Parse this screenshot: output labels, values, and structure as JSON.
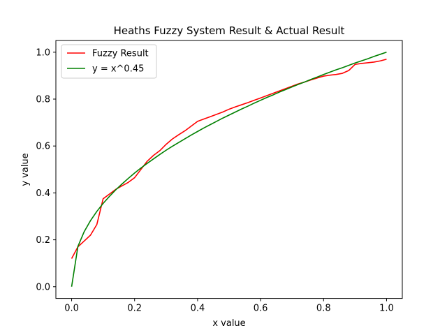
{
  "chart_data": {
    "type": "line",
    "title": "Heaths Fuzzy System Result & Actual Result",
    "xlabel": "x value",
    "ylabel": "y value",
    "xlim": [
      -0.05,
      1.05
    ],
    "ylim": [
      -0.05,
      1.05
    ],
    "xticks": [
      0.0,
      0.2,
      0.4,
      0.6,
      0.8,
      1.0
    ],
    "yticks": [
      0.0,
      0.2,
      0.4,
      0.6,
      0.8,
      1.0
    ],
    "xtick_labels": [
      "0.0",
      "0.2",
      "0.4",
      "0.6",
      "0.8",
      "1.0"
    ],
    "ytick_labels": [
      "0.0",
      "0.2",
      "0.4",
      "0.6",
      "0.8",
      "1.0"
    ],
    "grid": false,
    "legend": "top-left",
    "series": [
      {
        "name": "Fuzzy Result",
        "color": "#ff0000",
        "x": [
          0.0,
          0.02,
          0.04,
          0.06,
          0.08,
          0.1,
          0.12,
          0.14,
          0.16,
          0.18,
          0.2,
          0.22,
          0.24,
          0.26,
          0.28,
          0.3,
          0.32,
          0.34,
          0.36,
          0.38,
          0.4,
          0.42,
          0.44,
          0.46,
          0.48,
          0.5,
          0.52,
          0.54,
          0.56,
          0.58,
          0.6,
          0.62,
          0.64,
          0.66,
          0.68,
          0.7,
          0.72,
          0.74,
          0.76,
          0.78,
          0.8,
          0.82,
          0.84,
          0.86,
          0.88,
          0.9,
          0.92,
          0.94,
          0.96,
          0.98,
          1.0
        ],
        "y": [
          0.12,
          0.17,
          0.195,
          0.22,
          0.265,
          0.375,
          0.395,
          0.415,
          0.43,
          0.445,
          0.465,
          0.5,
          0.535,
          0.56,
          0.58,
          0.607,
          0.63,
          0.648,
          0.665,
          0.685,
          0.705,
          0.715,
          0.725,
          0.735,
          0.745,
          0.757,
          0.767,
          0.776,
          0.785,
          0.795,
          0.805,
          0.815,
          0.825,
          0.835,
          0.845,
          0.855,
          0.865,
          0.873,
          0.882,
          0.89,
          0.898,
          0.902,
          0.905,
          0.91,
          0.922,
          0.948,
          0.952,
          0.955,
          0.958,
          0.963,
          0.97
        ]
      },
      {
        "name": "y = x^0.45",
        "color": "#008000",
        "x": [
          0.0,
          0.02,
          0.04,
          0.06,
          0.08,
          0.1,
          0.12,
          0.14,
          0.16,
          0.18,
          0.2,
          0.22,
          0.24,
          0.26,
          0.28,
          0.3,
          0.32,
          0.34,
          0.36,
          0.38,
          0.4,
          0.42,
          0.44,
          0.46,
          0.48,
          0.5,
          0.52,
          0.54,
          0.56,
          0.58,
          0.6,
          0.62,
          0.64,
          0.66,
          0.68,
          0.7,
          0.72,
          0.74,
          0.76,
          0.78,
          0.8,
          0.82,
          0.84,
          0.86,
          0.88,
          0.9,
          0.92,
          0.94,
          0.96,
          0.98,
          1.0
        ],
        "y": [
          0.0,
          0.172,
          0.235,
          0.282,
          0.321,
          0.355,
          0.385,
          0.413,
          0.438,
          0.462,
          0.485,
          0.506,
          0.526,
          0.545,
          0.564,
          0.582,
          0.599,
          0.615,
          0.631,
          0.647,
          0.662,
          0.677,
          0.691,
          0.705,
          0.719,
          0.732,
          0.745,
          0.758,
          0.77,
          0.783,
          0.795,
          0.807,
          0.818,
          0.83,
          0.841,
          0.852,
          0.863,
          0.873,
          0.884,
          0.894,
          0.905,
          0.915,
          0.925,
          0.934,
          0.944,
          0.954,
          0.963,
          0.972,
          0.982,
          0.991,
          1.0
        ]
      }
    ]
  }
}
